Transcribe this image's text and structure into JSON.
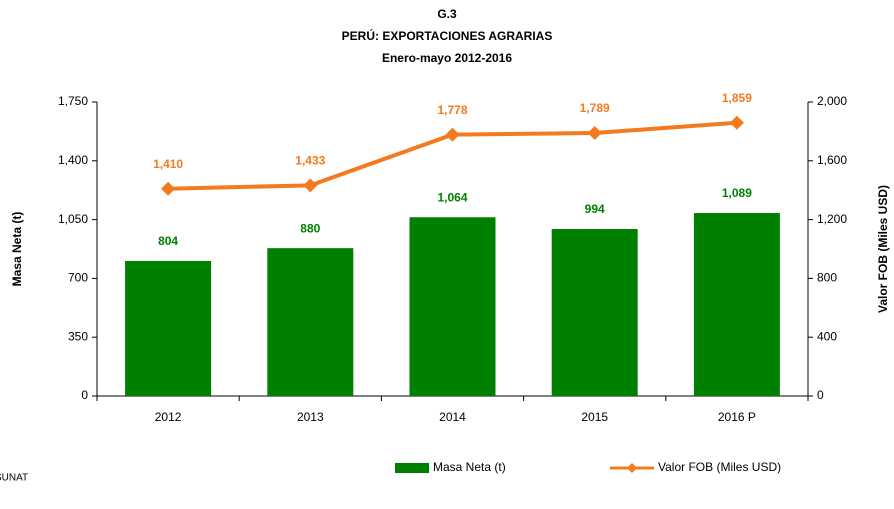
{
  "chart_data": {
    "type": "bar",
    "title": "G.3",
    "subtitle": "PERÚ: EXPORTACIONES AGRARIAS",
    "period": "Enero-mayo 2012-2016",
    "ylabel": "Masa Neta (t)",
    "y2label": "Valor FOB (Miles USD)",
    "source": "SUNAT",
    "categories": [
      "2012",
      "2013",
      "2014",
      "2015",
      "2016 P"
    ],
    "series": [
      {
        "name": "Masa Neta (t)",
        "type": "bar",
        "color": "#008000",
        "values": [
          804,
          880,
          1064,
          994,
          1089
        ],
        "value_labels": [
          "804",
          "880",
          "1,064",
          "994",
          "1,089"
        ]
      },
      {
        "name": "Valor FOB (Miles USD)",
        "type": "line",
        "axis": "y2",
        "color": "#f47a20",
        "values": [
          1410,
          1433,
          1778,
          1789,
          1859
        ],
        "value_labels": [
          "1,410",
          "1,433",
          "1,778",
          "1,789",
          "1,859"
        ]
      }
    ],
    "ylim": [
      0,
      1750
    ],
    "yticks": [
      0,
      350,
      700,
      {
        "value": 1050,
        "label": "1,050"
      },
      {
        "value": 1400,
        "label": "1,400"
      },
      {
        "value": 1750,
        "label": "1,750"
      }
    ],
    "y2lim": [
      0,
      2000
    ],
    "y2ticks": [
      0,
      400,
      800,
      {
        "value": 1200,
        "label": "1,200"
      },
      {
        "value": 1600,
        "label": "1,600"
      },
      {
        "value": 2000,
        "label": "2,000"
      }
    ],
    "legend": "bottom"
  }
}
